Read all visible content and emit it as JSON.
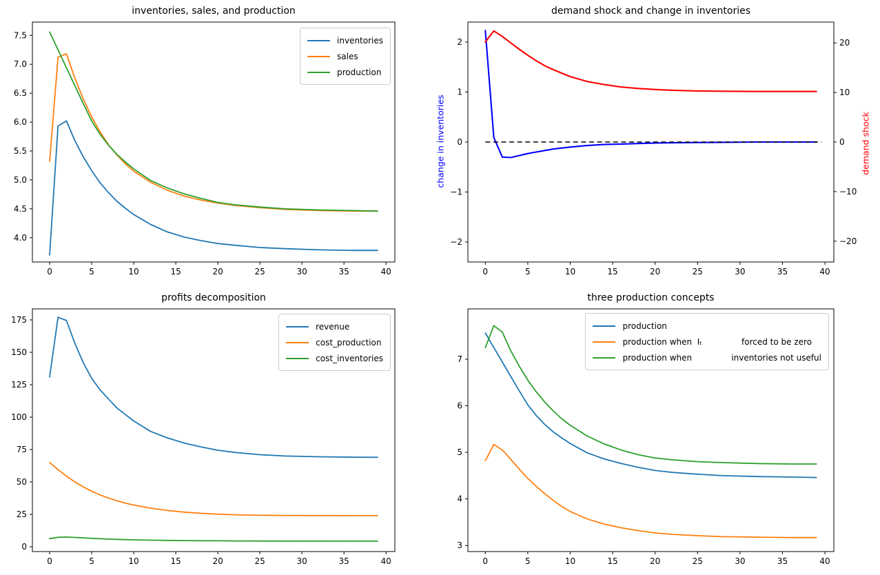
{
  "figure": {
    "background": "#ffffff"
  },
  "palette": {
    "mpl_blue": "#1f77b4",
    "mpl_orange": "#ff7f0e",
    "mpl_green": "#2ca02c",
    "pure_blue": "#0000ff",
    "pure_red": "#ff0000",
    "black": "#000000",
    "legend_border": "#cccccc"
  },
  "chart_data": [
    {
      "id": "inventories-sales-production",
      "type": "line",
      "title": "inventories, sales, and production",
      "xlim": [
        -2.05,
        41.05
      ],
      "ylim": [
        3.58,
        7.73
      ],
      "xticks": [
        0,
        5,
        10,
        15,
        20,
        25,
        30,
        35,
        40
      ],
      "xtick_labels": [
        "0",
        "5",
        "10",
        "15",
        "20",
        "25",
        "30",
        "35",
        "40"
      ],
      "yticks": [
        4.0,
        4.5,
        5.0,
        5.5,
        6.0,
        6.5,
        7.0,
        7.5
      ],
      "ytick_labels": [
        "4.0",
        "4.5",
        "5.0",
        "5.5",
        "6.0",
        "6.5",
        "7.0",
        "7.5"
      ],
      "x": [
        0,
        1,
        2,
        3,
        4,
        5,
        6,
        7,
        8,
        9,
        10,
        12,
        14,
        16,
        18,
        20,
        22,
        25,
        28,
        32,
        36,
        39
      ],
      "series": [
        {
          "name": "inventories",
          "label": "inventories",
          "color": "#1f77b4",
          "values": [
            3.7,
            5.93,
            6.02,
            5.68,
            5.4,
            5.16,
            4.95,
            4.78,
            4.63,
            4.51,
            4.4,
            4.23,
            4.1,
            4.01,
            3.95,
            3.9,
            3.87,
            3.83,
            3.81,
            3.79,
            3.78,
            3.78
          ]
        },
        {
          "name": "sales",
          "label": "sales",
          "color": "#ff7f0e",
          "values": [
            5.32,
            7.12,
            7.18,
            6.76,
            6.4,
            6.09,
            5.83,
            5.61,
            5.43,
            5.28,
            5.15,
            4.96,
            4.82,
            4.72,
            4.65,
            4.6,
            4.56,
            4.52,
            4.49,
            4.47,
            4.46,
            4.46
          ]
        },
        {
          "name": "production",
          "label": "production",
          "color": "#2ca02c",
          "values": [
            7.56,
            7.25,
            6.94,
            6.63,
            6.32,
            6.02,
            5.79,
            5.6,
            5.44,
            5.31,
            5.19,
            4.99,
            4.86,
            4.76,
            4.68,
            4.61,
            4.57,
            4.53,
            4.5,
            4.48,
            4.47,
            4.46
          ]
        }
      ],
      "legend": {
        "loc": "upper right"
      }
    },
    {
      "id": "demand-shock-and-change-in-inventories",
      "type": "line",
      "title": "demand shock and change in inventories",
      "xlim": [
        -2.05,
        41.05
      ],
      "ylim": [
        -2.4,
        2.4
      ],
      "ylim_right": [
        -24.2,
        24.2
      ],
      "xticks": [
        0,
        5,
        10,
        15,
        20,
        25,
        30,
        35,
        40
      ],
      "xtick_labels": [
        "0",
        "5",
        "10",
        "15",
        "20",
        "25",
        "30",
        "35",
        "40"
      ],
      "yticks": [
        -2,
        -1,
        0,
        1,
        2
      ],
      "ytick_labels": [
        "−2",
        "−1",
        "0",
        "1",
        "2"
      ],
      "yticks_right": [
        -20,
        -10,
        0,
        10,
        20
      ],
      "ytick_labels_right": [
        "−20",
        "−10",
        "0",
        "10",
        "20"
      ],
      "ylabel_left": {
        "text": "change in inventories",
        "color": "#0000ff"
      },
      "ylabel_right": {
        "text": "demand shock",
        "color": "#ff0000"
      },
      "zero_line": {
        "style": "dashed",
        "color": "#000000",
        "y": 0
      },
      "x": [
        0,
        1,
        2,
        3,
        4,
        5,
        6,
        7,
        8,
        9,
        10,
        12,
        14,
        16,
        18,
        20,
        22,
        25,
        28,
        32,
        36,
        39
      ],
      "series": [
        {
          "name": "change-in-inventories",
          "label": "change in inventories",
          "color": "#0000ff",
          "axis": "left",
          "lw": 2.1,
          "values": [
            2.23,
            0.09,
            -0.3,
            -0.31,
            -0.27,
            -0.23,
            -0.2,
            -0.17,
            -0.14,
            -0.12,
            -0.1,
            -0.07,
            -0.05,
            -0.04,
            -0.03,
            -0.02,
            -0.015,
            -0.01,
            -0.005,
            0,
            0,
            0
          ]
        },
        {
          "name": "demand-shock",
          "label": "demand shock",
          "color": "#ff0000",
          "axis": "right",
          "lw": 2.1,
          "values": [
            20.2,
            22.4,
            21.3,
            20.0,
            18.7,
            17.5,
            16.4,
            15.4,
            14.6,
            13.9,
            13.2,
            12.2,
            11.6,
            11.1,
            10.8,
            10.6,
            10.45,
            10.3,
            10.25,
            10.2,
            10.2,
            10.2
          ]
        }
      ]
    },
    {
      "id": "profits-decomposition",
      "type": "line",
      "title": "profits decomposition",
      "xlim": [
        -2.05,
        41.05
      ],
      "ylim": [
        -3.7,
        183.5
      ],
      "xticks": [
        0,
        5,
        10,
        15,
        20,
        25,
        30,
        35,
        40
      ],
      "xtick_labels": [
        "0",
        "5",
        "10",
        "15",
        "20",
        "25",
        "30",
        "35",
        "40"
      ],
      "yticks": [
        0,
        25,
        50,
        75,
        100,
        125,
        150,
        175
      ],
      "ytick_labels": [
        "0",
        "25",
        "50",
        "75",
        "100",
        "125",
        "150",
        "175"
      ],
      "x": [
        0,
        1,
        2,
        3,
        4,
        5,
        6,
        7,
        8,
        9,
        10,
        12,
        14,
        16,
        18,
        20,
        22,
        25,
        28,
        32,
        36,
        39
      ],
      "series": [
        {
          "name": "revenue",
          "label": "revenue",
          "color": "#1f77b4",
          "values": [
            131,
            177,
            174.5,
            157,
            142,
            130,
            121,
            114,
            107,
            102,
            97,
            89,
            84,
            80,
            77,
            74.5,
            72.8,
            71,
            70,
            69.4,
            69.1,
            69
          ]
        },
        {
          "name": "cost-production",
          "label": "cost_production",
          "color": "#ff7f0e",
          "values": [
            65,
            59.5,
            54.5,
            50,
            46.2,
            42.8,
            40,
            37.6,
            35.5,
            33.7,
            32.2,
            29.8,
            28,
            26.7,
            25.8,
            25.1,
            24.7,
            24.3,
            24.15,
            24.05,
            24,
            24
          ]
        },
        {
          "name": "cost-inventories",
          "label": "cost_inventories",
          "color": "#2ca02c",
          "values": [
            6.3,
            7.3,
            7.5,
            7.2,
            6.85,
            6.5,
            6.2,
            5.95,
            5.72,
            5.52,
            5.35,
            5.08,
            4.9,
            4.76,
            4.65,
            4.57,
            4.51,
            4.44,
            4.4,
            4.36,
            4.33,
            4.32
          ]
        }
      ],
      "legend": {
        "loc": "upper right"
      }
    },
    {
      "id": "three-production-concepts",
      "type": "line",
      "title": "three production concepts",
      "xlim": [
        -2.05,
        41.05
      ],
      "ylim": [
        2.87,
        8.08
      ],
      "xticks": [
        0,
        5,
        10,
        15,
        20,
        25,
        30,
        35,
        40
      ],
      "xtick_labels": [
        "0",
        "5",
        "10",
        "15",
        "20",
        "25",
        "30",
        "35",
        "40"
      ],
      "yticks": [
        3,
        4,
        5,
        6,
        7
      ],
      "ytick_labels": [
        "3",
        "4",
        "5",
        "6",
        "7"
      ],
      "x": [
        0,
        1,
        2,
        3,
        4,
        5,
        6,
        7,
        8,
        9,
        10,
        12,
        14,
        16,
        18,
        20,
        22,
        25,
        28,
        32,
        36,
        39
      ],
      "series": [
        {
          "name": "production",
          "label": "production",
          "color": "#1f77b4",
          "values": [
            7.56,
            7.25,
            6.94,
            6.63,
            6.32,
            6.02,
            5.79,
            5.6,
            5.44,
            5.31,
            5.19,
            4.99,
            4.86,
            4.76,
            4.68,
            4.61,
            4.57,
            4.53,
            4.5,
            4.48,
            4.47,
            4.46
          ]
        },
        {
          "name": "production-when-It-forced-to-be-zero",
          "label": "production when  Iₜ               forced to be zero",
          "color": "#ff7f0e",
          "values": [
            4.82,
            5.17,
            5.05,
            4.85,
            4.64,
            4.44,
            4.27,
            4.11,
            3.97,
            3.84,
            3.73,
            3.57,
            3.46,
            3.38,
            3.32,
            3.27,
            3.24,
            3.21,
            3.19,
            3.18,
            3.17,
            3.17
          ]
        },
        {
          "name": "production-when-inventories-not-useful",
          "label": "production when               inventories not useful",
          "color": "#2ca02c",
          "values": [
            7.25,
            7.72,
            7.58,
            7.18,
            6.85,
            6.55,
            6.3,
            6.08,
            5.89,
            5.72,
            5.58,
            5.35,
            5.18,
            5.05,
            4.95,
            4.88,
            4.84,
            4.8,
            4.78,
            4.76,
            4.75,
            4.75
          ]
        }
      ],
      "legend": {
        "loc": "upper right"
      }
    }
  ]
}
